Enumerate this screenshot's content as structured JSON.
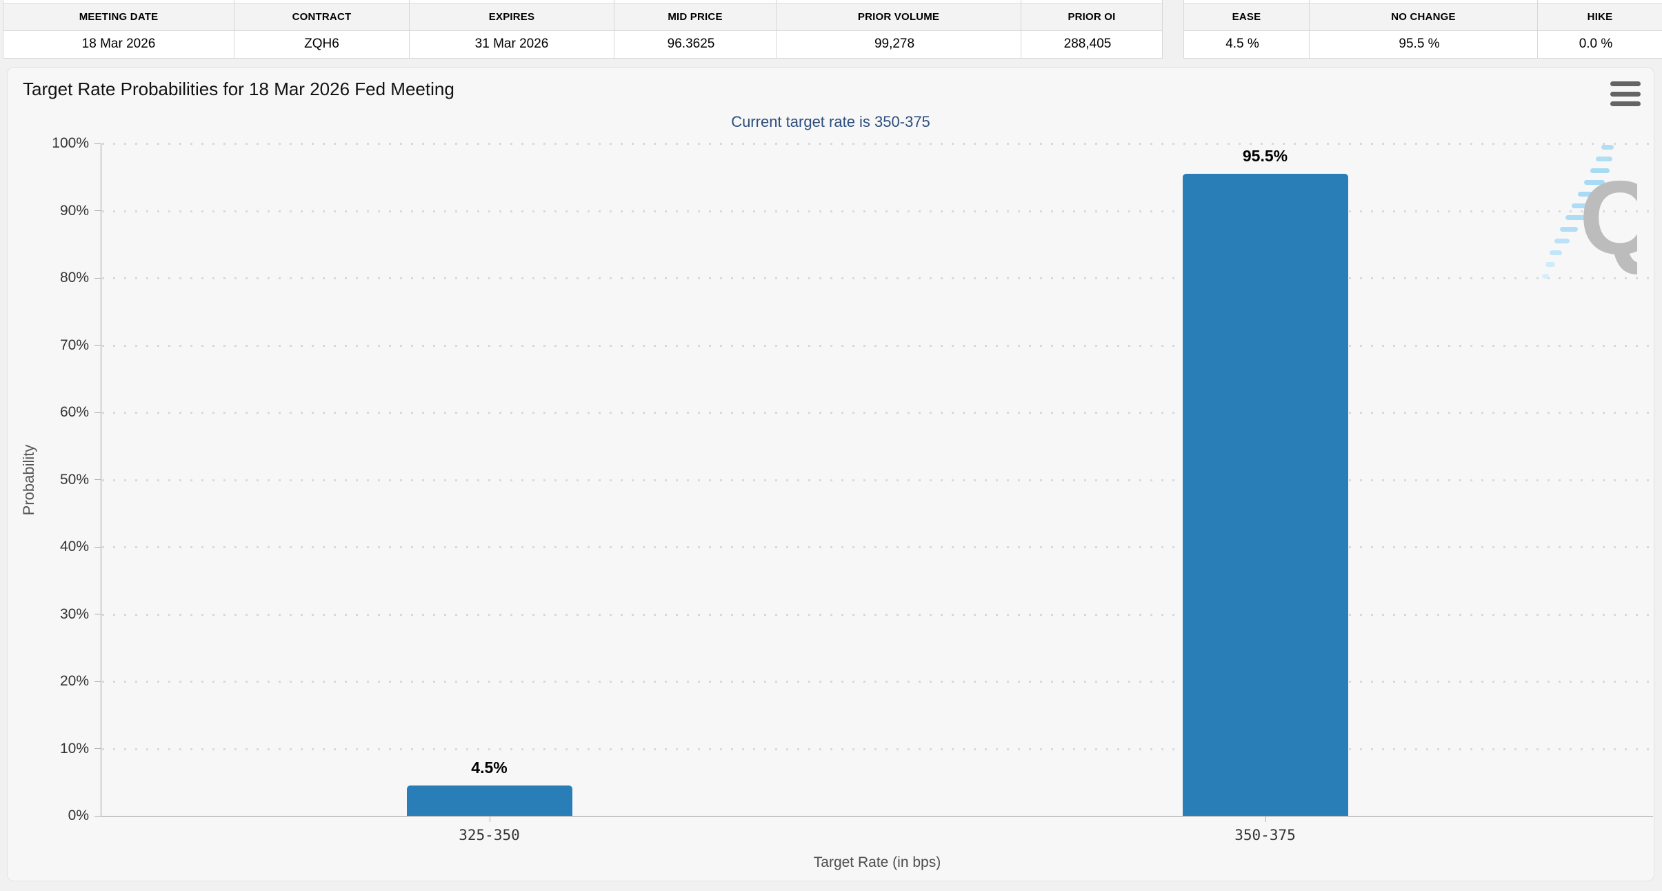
{
  "contract_table": {
    "headers": [
      "MEETING DATE",
      "CONTRACT",
      "EXPIRES",
      "MID PRICE",
      "PRIOR VOLUME",
      "PRIOR OI"
    ],
    "row": [
      "18 Mar 2026",
      "ZQH6",
      "31 Mar 2026",
      "96.3625",
      "99,278",
      "288,405"
    ]
  },
  "probability_table": {
    "headers": [
      "EASE",
      "NO CHANGE",
      "HIKE"
    ],
    "row": [
      "4.5 %",
      "95.5 %",
      "0.0 %"
    ]
  },
  "chart": {
    "title": "Target Rate Probabilities for 18 Mar 2026 Fed Meeting",
    "subtitle": "Current target rate is 350-375",
    "watermark_letter": "Q"
  },
  "chart_data": {
    "type": "bar",
    "title": "Target Rate Probabilities for 18 Mar 2026 Fed Meeting",
    "subtitle": "Current target rate is 350-375",
    "categories": [
      "325-350",
      "350-375"
    ],
    "values": [
      4.5,
      95.5
    ],
    "bar_labels": [
      "4.5%",
      "95.5%"
    ],
    "xlabel": "Target Rate (in bps)",
    "ylabel": "Probability",
    "ylim": [
      0,
      100
    ],
    "ytick_step": 10,
    "ytick_suffix": "%",
    "grid": "dotted horizontal gridlines, legend off",
    "bar_color": "#2a7eb8"
  },
  "colors": {
    "accent_blue": "#2a7eb8",
    "subtitle_blue": "#2d4d7c",
    "panel_bg": "#f7f7f7",
    "header_row_bg": "#f3f3f3",
    "gridline": "#d9d9d9",
    "axis_line": "#9b9b9b"
  }
}
